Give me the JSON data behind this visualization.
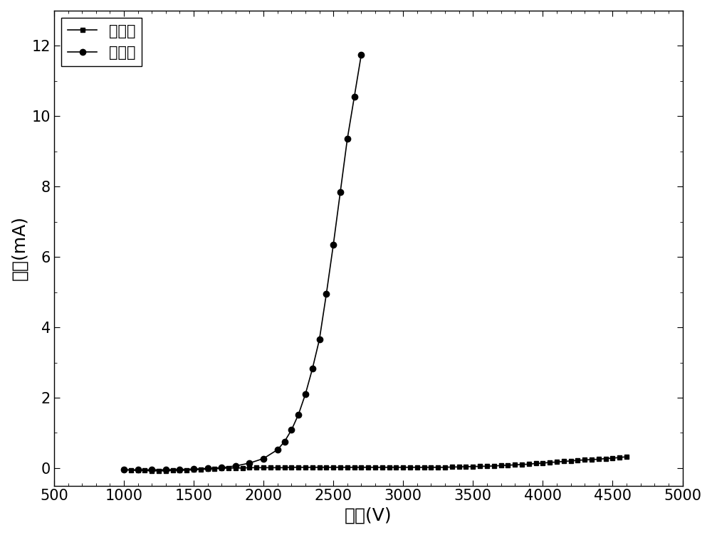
{
  "title": "",
  "xlabel": "电压(V)",
  "ylabel": "电流(mA)",
  "xlim": [
    500,
    5000
  ],
  "ylim": [
    -0.5,
    13
  ],
  "xticks": [
    500,
    1000,
    1500,
    2000,
    2500,
    3000,
    3500,
    4000,
    4500,
    5000
  ],
  "yticks": [
    0,
    2,
    4,
    6,
    8,
    10,
    12
  ],
  "legend_before": "活化前",
  "legend_after": "活化后",
  "line_color": "#000000",
  "background_color": "#ffffff",
  "before_x": [
    1000,
    1050,
    1100,
    1150,
    1200,
    1250,
    1300,
    1350,
    1400,
    1450,
    1500,
    1550,
    1600,
    1650,
    1700,
    1750,
    1800,
    1850,
    1900,
    1950,
    2000,
    2050,
    2100,
    2150,
    2200,
    2250,
    2300,
    2350,
    2400,
    2450,
    2500,
    2550,
    2600,
    2650,
    2700,
    2750,
    2800,
    2850,
    2900,
    2950,
    3000,
    3050,
    3100,
    3150,
    3200,
    3250,
    3300,
    3350,
    3400,
    3450,
    3500,
    3550,
    3600,
    3650,
    3700,
    3750,
    3800,
    3850,
    3900,
    3950,
    4000,
    4050,
    4100,
    4150,
    4200,
    4250,
    4300,
    4350,
    4400,
    4450,
    4500,
    4550,
    4600
  ],
  "before_y": [
    -0.05,
    -0.06,
    -0.07,
    -0.07,
    -0.08,
    -0.08,
    -0.08,
    -0.07,
    -0.07,
    -0.06,
    -0.05,
    -0.04,
    -0.03,
    -0.02,
    -0.01,
    0.0,
    0.0,
    0.0,
    0.01,
    0.01,
    0.01,
    0.01,
    0.01,
    0.01,
    0.02,
    0.02,
    0.02,
    0.02,
    0.02,
    0.02,
    0.02,
    0.02,
    0.02,
    0.02,
    0.02,
    0.02,
    0.02,
    0.02,
    0.02,
    0.02,
    0.02,
    0.02,
    0.02,
    0.02,
    0.02,
    0.02,
    0.02,
    0.03,
    0.03,
    0.04,
    0.04,
    0.05,
    0.05,
    0.06,
    0.07,
    0.08,
    0.09,
    0.1,
    0.11,
    0.13,
    0.14,
    0.16,
    0.17,
    0.19,
    0.2,
    0.22,
    0.23,
    0.24,
    0.25,
    0.27,
    0.28,
    0.3,
    0.32
  ],
  "after_x": [
    1000,
    1100,
    1200,
    1300,
    1400,
    1500,
    1600,
    1700,
    1800,
    1900,
    2000,
    2100,
    2150,
    2200,
    2250,
    2300,
    2350,
    2400,
    2450,
    2500,
    2550,
    2600,
    2650,
    2700
  ],
  "after_y": [
    -0.05,
    -0.05,
    -0.05,
    -0.05,
    -0.04,
    -0.03,
    -0.01,
    0.01,
    0.06,
    0.14,
    0.27,
    0.52,
    0.75,
    1.08,
    1.52,
    2.1,
    2.82,
    3.65,
    4.95,
    6.35,
    7.85,
    9.35,
    10.55,
    11.75
  ],
  "xlabel_fontsize": 18,
  "ylabel_fontsize": 18,
  "tick_fontsize": 15,
  "legend_fontsize": 15,
  "linewidth": 1.2,
  "marker_size_before": 4,
  "marker_size_after": 6
}
